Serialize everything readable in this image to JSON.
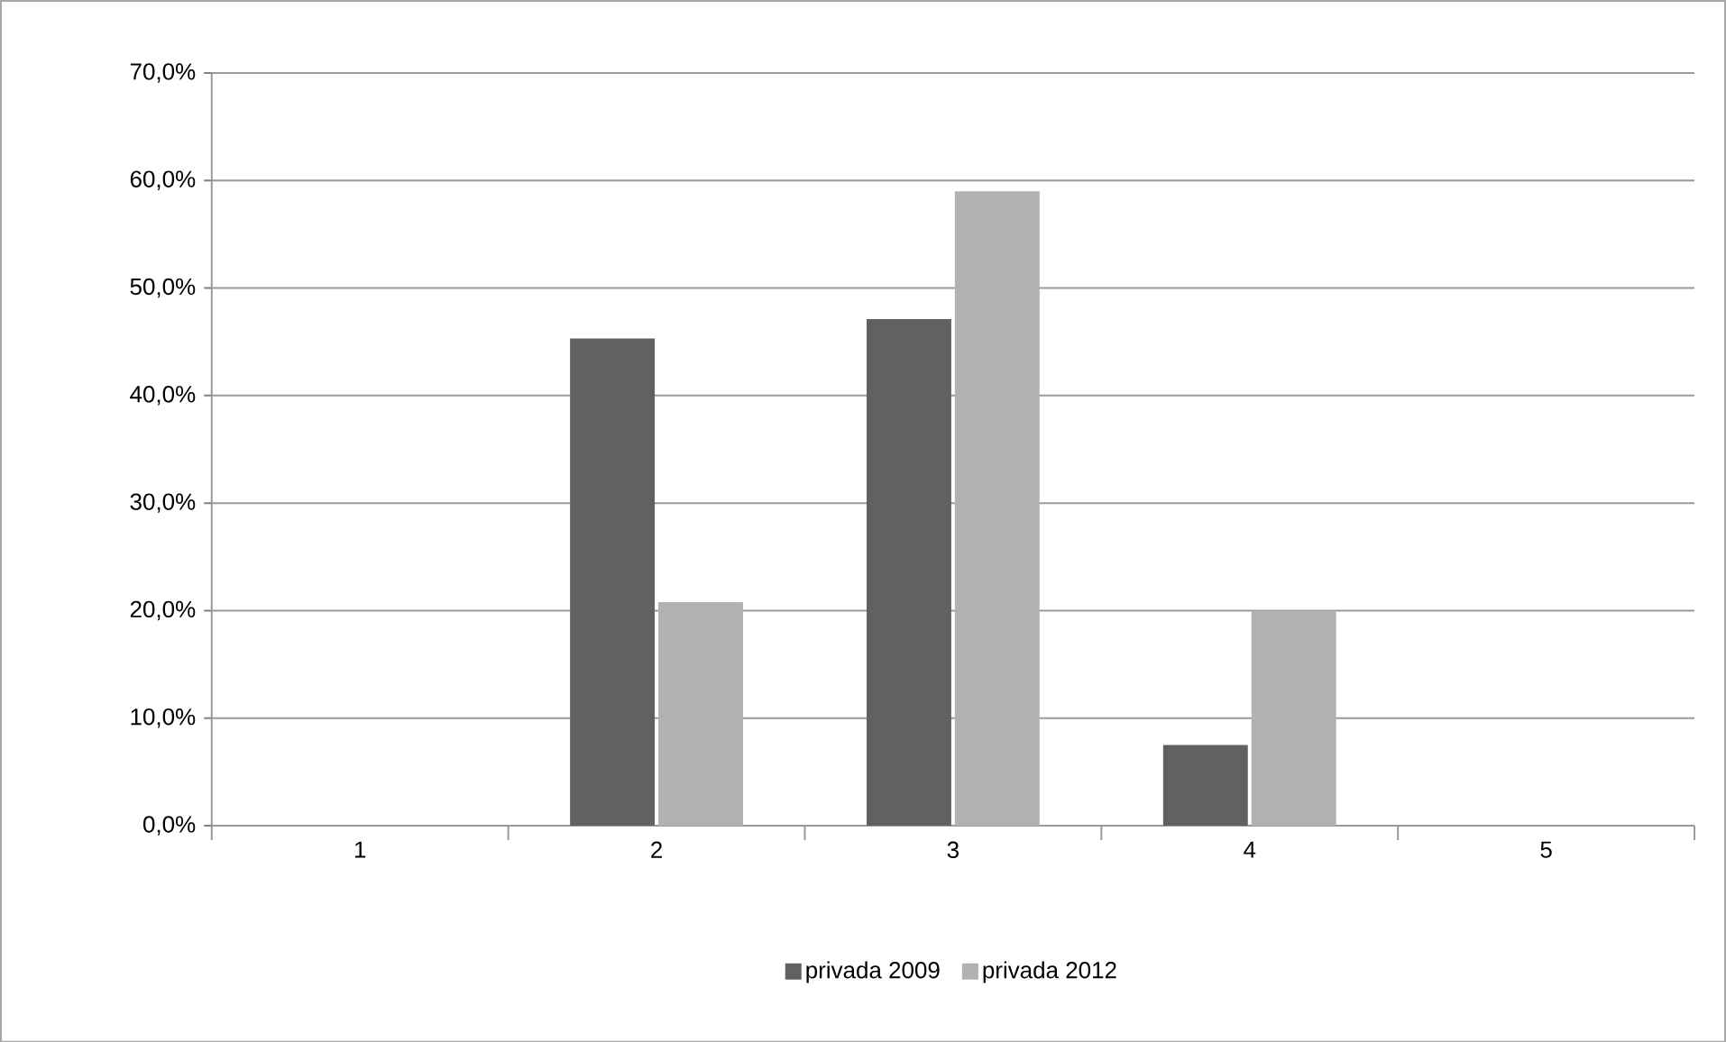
{
  "chart_data": {
    "type": "bar",
    "categories": [
      "1",
      "2",
      "3",
      "4",
      "5"
    ],
    "series": [
      {
        "name": "privada 2009",
        "color": "#616161",
        "values": [
          0,
          45.3,
          47.1,
          7.5,
          0
        ]
      },
      {
        "name": "privada 2012",
        "color": "#b2b2b2",
        "values": [
          0,
          20.8,
          59.0,
          20.0,
          0
        ]
      }
    ],
    "ylim": [
      0,
      70
    ],
    "yticks": [
      {
        "value": 0,
        "label": "0,0%"
      },
      {
        "value": 10,
        "label": "10,0%"
      },
      {
        "value": 20,
        "label": "20,0%"
      },
      {
        "value": 30,
        "label": "30,0%"
      },
      {
        "value": 40,
        "label": "40,0%"
      },
      {
        "value": 50,
        "label": "50,0%"
      },
      {
        "value": 60,
        "label": "60,0%"
      },
      {
        "value": 70,
        "label": "70,0%"
      }
    ],
    "grid": "y",
    "legend": "bottom"
  }
}
